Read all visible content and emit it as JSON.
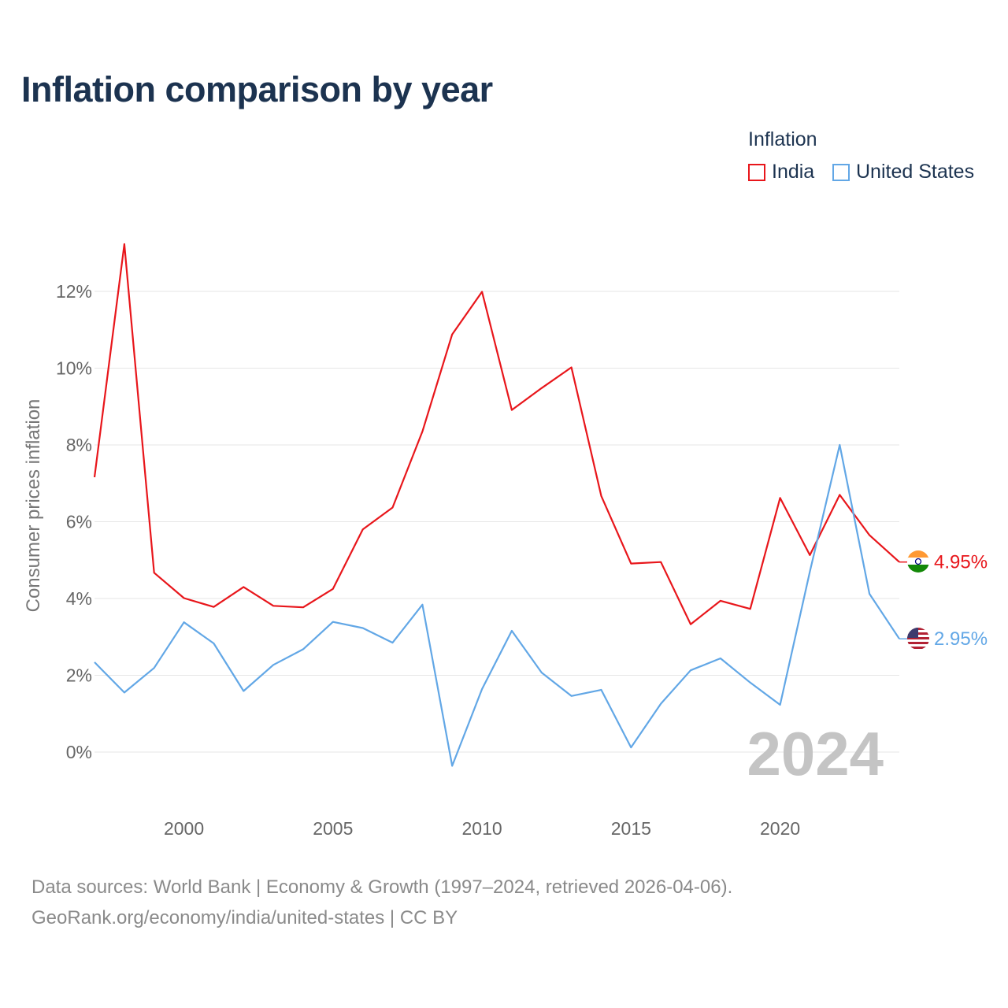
{
  "title": "Inflation comparison by year",
  "legend": {
    "title": "Inflation",
    "items": [
      {
        "label": "India",
        "color": "#e8161b"
      },
      {
        "label": "United States",
        "color": "#62a7e6"
      }
    ]
  },
  "source": {
    "line1": "Data sources: World Bank | Economy & Growth (1997–2024, retrieved 2026-04-06).",
    "line2": "GeoRank.org/economy/india/united-states | CC BY"
  },
  "chart_data": {
    "type": "line",
    "title": "Inflation comparison by year",
    "xlabel": "",
    "ylabel": "Consumer prices inflation",
    "xlim": [
      1997,
      2024
    ],
    "ylim": [
      -1.2,
      13.2
    ],
    "y_ticks": [
      0,
      2,
      4,
      6,
      8,
      10,
      12
    ],
    "y_tick_labels": [
      "0%",
      "2%",
      "4%",
      "6%",
      "8%",
      "10%",
      "12%"
    ],
    "x_ticks": [
      2000,
      2005,
      2010,
      2015,
      2020
    ],
    "x_tick_labels": [
      "2000",
      "2005",
      "2010",
      "2015",
      "2020"
    ],
    "grid": true,
    "legend_position": "top-right",
    "year_watermark": "2024",
    "x": [
      1997,
      1998,
      1999,
      2000,
      2001,
      2002,
      2003,
      2004,
      2005,
      2006,
      2007,
      2008,
      2009,
      2010,
      2011,
      2012,
      2013,
      2014,
      2015,
      2016,
      2017,
      2018,
      2019,
      2020,
      2021,
      2022,
      2023,
      2024
    ],
    "series": [
      {
        "name": "India",
        "color": "#e8161b",
        "end_label": "4.95%",
        "values": [
          7.16,
          13.23,
          4.67,
          4.01,
          3.78,
          4.3,
          3.81,
          3.77,
          4.25,
          5.8,
          6.37,
          8.35,
          10.88,
          11.99,
          8.91,
          9.48,
          10.02,
          6.67,
          4.91,
          4.95,
          3.33,
          3.94,
          3.73,
          6.62,
          5.13,
          6.7,
          5.65,
          4.95
        ]
      },
      {
        "name": "United States",
        "color": "#62a7e6",
        "end_label": "2.95%",
        "values": [
          2.34,
          1.55,
          2.19,
          3.38,
          2.83,
          1.59,
          2.27,
          2.68,
          3.39,
          3.23,
          2.85,
          3.84,
          -0.36,
          1.64,
          3.16,
          2.07,
          1.46,
          1.62,
          0.12,
          1.26,
          2.13,
          2.44,
          1.81,
          1.23,
          4.7,
          8.0,
          4.12,
          2.95
        ]
      }
    ]
  }
}
